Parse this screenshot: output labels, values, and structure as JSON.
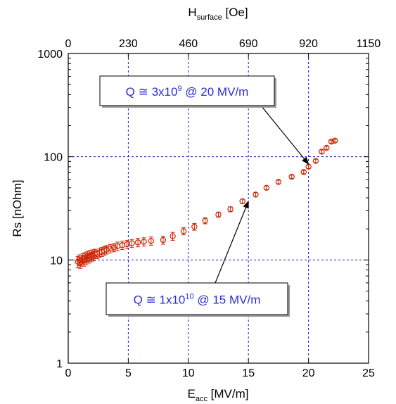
{
  "chart_data": {
    "type": "scatter",
    "xlabel": {
      "main": "E",
      "sub": "acc",
      "unit": " [MV/m]"
    },
    "ylabel": "Rs [nOhm]",
    "top_xlabel": {
      "main": "H",
      "sub": "surface",
      "unit": " [Oe]"
    },
    "xlim": [
      0,
      25
    ],
    "ylim": [
      1,
      1000
    ],
    "y_scale": "log",
    "grid": true,
    "x_ticks": [
      "0",
      "5",
      "10",
      "15",
      "20",
      "25"
    ],
    "y_ticks": [
      "1",
      "10",
      "100",
      "1000"
    ],
    "top_ticks": [
      "0",
      "230",
      "460",
      "690",
      "920",
      "1150"
    ],
    "marker_color": "#cc2200",
    "grid_color": "#1a1acc",
    "annotation_color": "#2b2bd6",
    "annotations": [
      {
        "pre": "Q ≅ 3x10",
        "sup": "9",
        "post": " @ 20 MV/m",
        "target": [
          20.0,
          85
        ]
      },
      {
        "pre": "Q ≅ 1x10",
        "sup": "10",
        "post": " @ 15 MV/m",
        "target": [
          15.0,
          37
        ]
      }
    ],
    "series": [
      {
        "points": [
          [
            0.8,
            9.6,
            1.2
          ],
          [
            0.9,
            10.0,
            1.2
          ],
          [
            1.0,
            9.4,
            1.1
          ],
          [
            1.1,
            9.9,
            1.2
          ],
          [
            1.2,
            10.3,
            1.2
          ],
          [
            1.3,
            9.8,
            1.1
          ],
          [
            1.4,
            10.6,
            1.2
          ],
          [
            1.5,
            10.1,
            1.1
          ],
          [
            1.6,
            10.9,
            1.2
          ],
          [
            1.7,
            10.4,
            1.1
          ],
          [
            1.8,
            11.1,
            1.2
          ],
          [
            1.9,
            10.7,
            1.1
          ],
          [
            2.0,
            11.3,
            1.2
          ],
          [
            2.1,
            10.9,
            1.1
          ],
          [
            2.2,
            11.5,
            1.2
          ],
          [
            2.4,
            11.4,
            1.1
          ],
          [
            2.6,
            11.8,
            1.2
          ],
          [
            2.8,
            12.0,
            1.2
          ],
          [
            3.0,
            12.3,
            1.2
          ],
          [
            3.2,
            12.6,
            1.2
          ],
          [
            3.5,
            12.9,
            1.2
          ],
          [
            3.8,
            13.2,
            1.2
          ],
          [
            4.1,
            13.6,
            1.3
          ],
          [
            4.5,
            13.9,
            1.3
          ],
          [
            4.9,
            14.2,
            1.3
          ],
          [
            5.3,
            14.5,
            1.3
          ],
          [
            5.8,
            14.8,
            1.4
          ],
          [
            6.3,
            15.0,
            1.4
          ],
          [
            6.9,
            15.3,
            1.4
          ],
          [
            7.9,
            15.6,
            1.4
          ],
          [
            8.7,
            17.0,
            1.5
          ],
          [
            9.6,
            19.0,
            1.5
          ],
          [
            10.5,
            21.0,
            1.6
          ],
          [
            11.4,
            24.0,
            1.6
          ],
          [
            12.5,
            27.5,
            1.6
          ],
          [
            13.5,
            31.0,
            1.7
          ],
          [
            14.5,
            37.0,
            1.8
          ],
          [
            15.6,
            43.0,
            1.8
          ],
          [
            16.5,
            50.0,
            2.0
          ],
          [
            17.5,
            57.0,
            2.2
          ],
          [
            18.6,
            64.0,
            2.4
          ],
          [
            19.6,
            71.0,
            2.6
          ],
          [
            20.0,
            80.0,
            3.0
          ],
          [
            20.6,
            91.0,
            3.5
          ],
          [
            21.1,
            112.0,
            4.0
          ],
          [
            21.5,
            122.0,
            4.0
          ],
          [
            21.9,
            140.0,
            4.5
          ],
          [
            22.2,
            143.0,
            4.5
          ]
        ]
      }
    ]
  }
}
